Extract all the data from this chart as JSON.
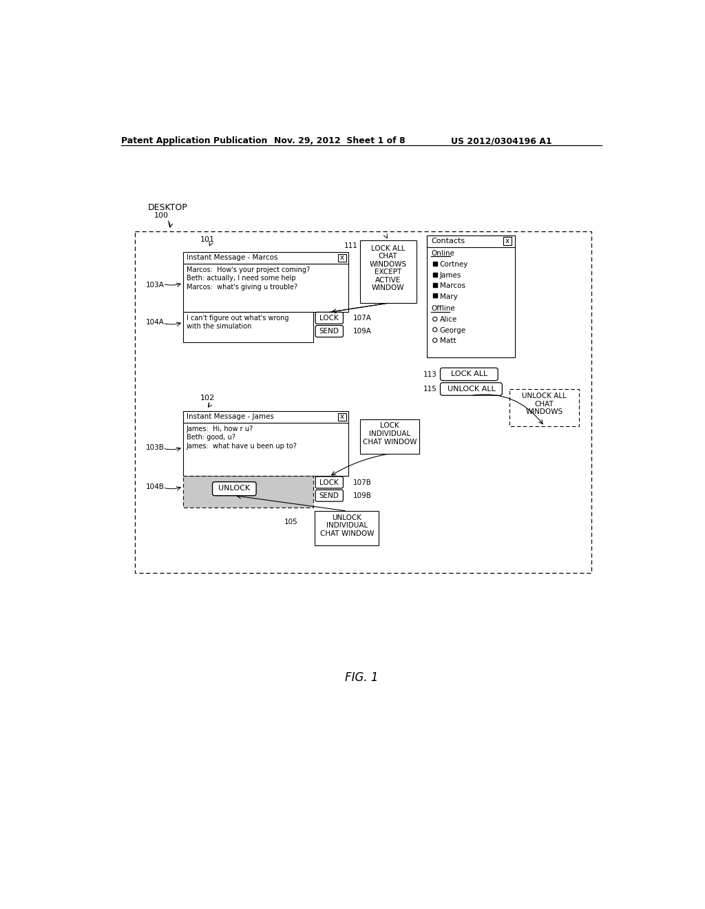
{
  "bg_color": "#ffffff",
  "header_left": "Patent Application Publication",
  "header_mid": "Nov. 29, 2012  Sheet 1 of 8",
  "header_right": "US 2012/0304196 A1",
  "fig_label": "FIG. 1"
}
